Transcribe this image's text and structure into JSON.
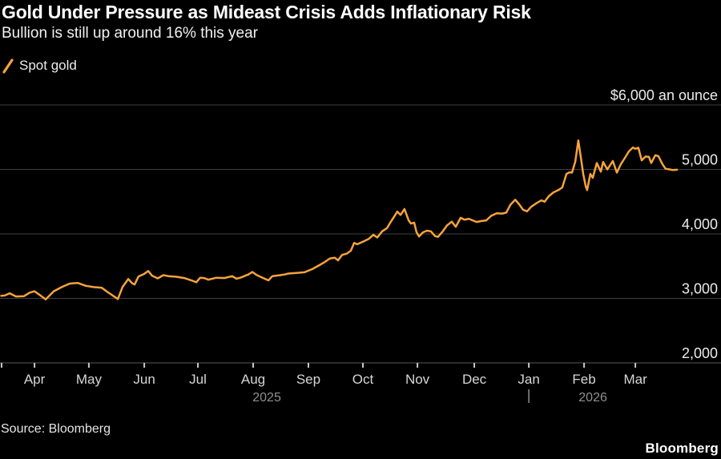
{
  "header": {
    "title": "Gold Under Pressure as Mideast Crisis Adds Inflationary Risk",
    "subtitle": "Bullion is still up around 16% this year"
  },
  "legend": {
    "series_label": "Spot gold",
    "marker_icon": "orange-slash-icon"
  },
  "footer": {
    "source": "Source: Bloomberg",
    "brand": "Bloomberg"
  },
  "colors": {
    "background": "#000000",
    "accent": "#F7A33B",
    "grid": "#3f3f3f",
    "axis": "#585858",
    "tick": "#c8c8c8",
    "text_primary": "#ffffff",
    "text_axis": "#ececec",
    "text_month": "#d6d6d6",
    "text_year": "#8f8f8f"
  },
  "chart_data": {
    "type": "line",
    "title": "Gold Under Pressure as Mideast Crisis Adds Inflationary Risk",
    "subtitle": "Bullion is still up around 16% this year",
    "legend_entries": [
      "Spot gold"
    ],
    "grid": "horizontal-only",
    "legend_position": "top-left",
    "y_axis": {
      "range": [
        2000,
        6000
      ],
      "ticks": [
        {
          "value": 6000,
          "label": "$6,000 an ounce"
        },
        {
          "value": 5000,
          "label": "5,000"
        },
        {
          "value": 4000,
          "label": "4,000"
        },
        {
          "value": 3000,
          "label": "3,000"
        },
        {
          "value": 2000,
          "label": "2,000"
        }
      ]
    },
    "x_axis": {
      "domain_days": [
        -2,
        373.5
      ],
      "months": [
        {
          "label": "Apr",
          "day": 16.5
        },
        {
          "label": "May",
          "day": 46.7
        },
        {
          "label": "Jun",
          "day": 77.5
        },
        {
          "label": "Jul",
          "day": 107.3
        },
        {
          "label": "Aug",
          "day": 138.0
        },
        {
          "label": "Sep",
          "day": 168.7
        },
        {
          "label": "Oct",
          "day": 199.0
        },
        {
          "label": "Nov",
          "day": 229.3
        },
        {
          "label": "Dec",
          "day": 260.9
        },
        {
          "label": "Jan",
          "day": 291.2
        },
        {
          "label": "Feb",
          "day": 321.9
        },
        {
          "label": "Mar",
          "day": 350.4
        }
      ],
      "years": [
        {
          "label": "2025",
          "day": 145.6
        },
        {
          "label": "2026",
          "day": 326.8
        }
      ],
      "year_divider_day": 291.2,
      "edge_tick_day": -1.8
    },
    "series": [
      {
        "name": "Spot gold",
        "color": "#F7A33B",
        "points": [
          [
            -2,
            3040
          ],
          [
            0,
            3045
          ],
          [
            2.7,
            3080
          ],
          [
            6.2,
            3030
          ],
          [
            10.7,
            3035
          ],
          [
            13.8,
            3090
          ],
          [
            16.5,
            3110
          ],
          [
            19.6,
            3050
          ],
          [
            22.7,
            2985
          ],
          [
            27.2,
            3110
          ],
          [
            31.6,
            3175
          ],
          [
            36.1,
            3230
          ],
          [
            40.5,
            3240
          ],
          [
            45,
            3195
          ],
          [
            49.4,
            3175
          ],
          [
            53.9,
            3165
          ],
          [
            56.5,
            3110
          ],
          [
            59.7,
            3050
          ],
          [
            62.8,
            2990
          ],
          [
            65.4,
            3175
          ],
          [
            68.6,
            3300
          ],
          [
            70.8,
            3235
          ],
          [
            72.1,
            3215
          ],
          [
            74.3,
            3340
          ],
          [
            77.5,
            3380
          ],
          [
            79.7,
            3425
          ],
          [
            81.9,
            3350
          ],
          [
            85,
            3310
          ],
          [
            88.1,
            3360
          ],
          [
            90.8,
            3345
          ],
          [
            95.3,
            3335
          ],
          [
            99.7,
            3315
          ],
          [
            104.2,
            3275
          ],
          [
            106.4,
            3250
          ],
          [
            108.6,
            3320
          ],
          [
            110.8,
            3315
          ],
          [
            113.1,
            3290
          ],
          [
            117.5,
            3320
          ],
          [
            122,
            3315
          ],
          [
            126.4,
            3345
          ],
          [
            128.7,
            3305
          ],
          [
            130.9,
            3320
          ],
          [
            135.3,
            3370
          ],
          [
            137.6,
            3410
          ],
          [
            139.8,
            3365
          ],
          [
            142,
            3335
          ],
          [
            146.5,
            3280
          ],
          [
            148.7,
            3345
          ],
          [
            153.1,
            3360
          ],
          [
            155.4,
            3370
          ],
          [
            157.6,
            3385
          ],
          [
            162,
            3395
          ],
          [
            166.5,
            3405
          ],
          [
            170.9,
            3455
          ],
          [
            174.5,
            3510
          ],
          [
            177.6,
            3560
          ],
          [
            180.7,
            3620
          ],
          [
            183.4,
            3630
          ],
          [
            185.2,
            3590
          ],
          [
            187.4,
            3675
          ],
          [
            190.1,
            3695
          ],
          [
            192.3,
            3740
          ],
          [
            194.1,
            3860
          ],
          [
            195.9,
            3840
          ],
          [
            199,
            3880
          ],
          [
            202.1,
            3920
          ],
          [
            204.8,
            3985
          ],
          [
            207,
            3945
          ],
          [
            209.7,
            4040
          ],
          [
            212.4,
            4090
          ],
          [
            214.1,
            4170
          ],
          [
            216.4,
            4270
          ],
          [
            218.1,
            4345
          ],
          [
            219.9,
            4295
          ],
          [
            222.1,
            4385
          ],
          [
            224.4,
            4210
          ],
          [
            225.7,
            4160
          ],
          [
            227.5,
            4175
          ],
          [
            228.8,
            4025
          ],
          [
            230.2,
            3960
          ],
          [
            232.4,
            4025
          ],
          [
            234.6,
            4050
          ],
          [
            236.8,
            4040
          ],
          [
            239.1,
            3965
          ],
          [
            240.8,
            3955
          ],
          [
            243.5,
            4045
          ],
          [
            245.7,
            4130
          ],
          [
            248.4,
            4190
          ],
          [
            250.6,
            4110
          ],
          [
            253.3,
            4250
          ],
          [
            255.5,
            4220
          ],
          [
            257.8,
            4235
          ],
          [
            260,
            4210
          ],
          [
            262.2,
            4185
          ],
          [
            264.9,
            4200
          ],
          [
            267.6,
            4210
          ],
          [
            270.2,
            4280
          ],
          [
            273.3,
            4320
          ],
          [
            276.5,
            4315
          ],
          [
            278.7,
            4330
          ],
          [
            280.9,
            4450
          ],
          [
            283.6,
            4530
          ],
          [
            285.8,
            4460
          ],
          [
            288,
            4375
          ],
          [
            290.2,
            4350
          ],
          [
            292.5,
            4420
          ],
          [
            295.6,
            4480
          ],
          [
            298.2,
            4520
          ],
          [
            300,
            4500
          ],
          [
            302.3,
            4585
          ],
          [
            304.9,
            4645
          ],
          [
            307.6,
            4680
          ],
          [
            309.8,
            4720
          ],
          [
            312.1,
            4930
          ],
          [
            313.8,
            4955
          ],
          [
            315.2,
            4950
          ],
          [
            317,
            5120
          ],
          [
            318.7,
            5450
          ],
          [
            320.1,
            5190
          ],
          [
            321.4,
            4930
          ],
          [
            322.8,
            4740
          ],
          [
            323.6,
            4680
          ],
          [
            325.4,
            4930
          ],
          [
            326.7,
            4870
          ],
          [
            329,
            5100
          ],
          [
            331.2,
            4965
          ],
          [
            332.5,
            5115
          ],
          [
            334.8,
            5000
          ],
          [
            337.9,
            5130
          ],
          [
            340.1,
            4950
          ],
          [
            342.3,
            5080
          ],
          [
            344.6,
            5180
          ],
          [
            346.8,
            5280
          ],
          [
            349,
            5340
          ],
          [
            350.3,
            5320
          ],
          [
            352.1,
            5335
          ],
          [
            353.9,
            5140
          ],
          [
            356.1,
            5200
          ],
          [
            357.9,
            5195
          ],
          [
            359.2,
            5100
          ],
          [
            361.5,
            5220
          ],
          [
            363.2,
            5205
          ],
          [
            365.5,
            5080
          ],
          [
            367.2,
            5010
          ],
          [
            369.5,
            5000
          ],
          [
            371.2,
            4990
          ],
          [
            373.5,
            4995
          ]
        ]
      }
    ]
  }
}
